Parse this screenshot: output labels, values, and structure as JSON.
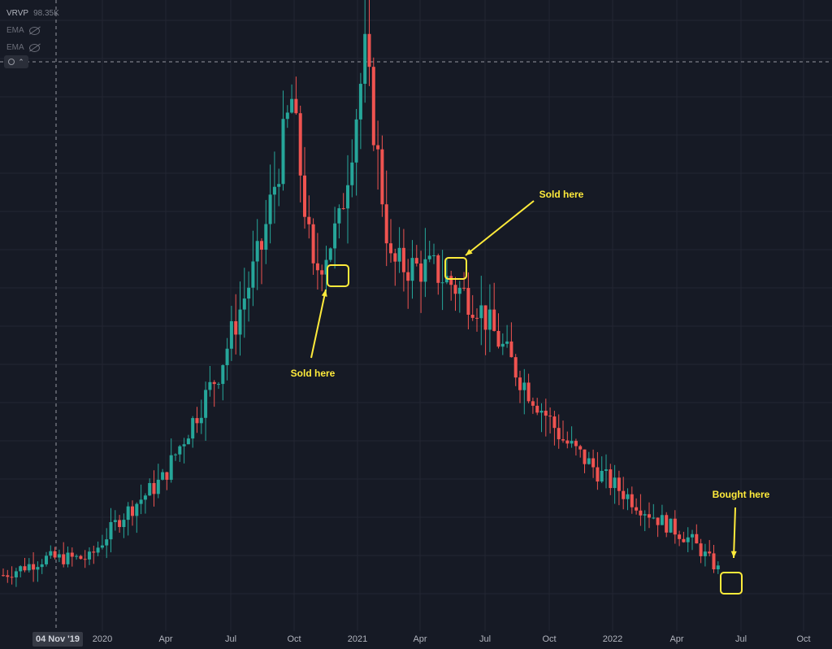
{
  "legend": {
    "vrvp_label": "VRVP",
    "vrvp_value": "98.35K",
    "ema1_label": "EMA",
    "ema2_label": "EMA"
  },
  "crosshair": {
    "date_label": "04 Nov '19"
  },
  "colors": {
    "background": "#161a25",
    "up": "#26a69a",
    "down": "#ef5350",
    "annotation": "#ffeb3b",
    "grid": "#232632",
    "axis_text": "#b2b5be"
  },
  "chart_data": {
    "type": "candlestick",
    "x_axis_ticks": [
      "2020",
      "Apr",
      "Jul",
      "Oct",
      "2021",
      "Apr",
      "Jul",
      "Oct",
      "2022",
      "Apr",
      "Jul",
      "Oct"
    ],
    "y_axis": "not shown",
    "series_trend_rel": [
      {
        "week": 0,
        "close": 0.04
      },
      {
        "week": 10,
        "close": 0.07
      },
      {
        "week": 20,
        "close": 0.07
      },
      {
        "week": 27,
        "close": 0.14
      },
      {
        "week": 37,
        "close": 0.21
      },
      {
        "week": 50,
        "close": 0.4
      },
      {
        "week": 60,
        "close": 0.62
      },
      {
        "week": 67,
        "close": 0.88
      },
      {
        "week": 72,
        "close": 0.57
      },
      {
        "week": 78,
        "close": 0.66
      },
      {
        "week": 84,
        "close": 0.96
      },
      {
        "week": 90,
        "close": 0.59
      },
      {
        "week": 100,
        "close": 0.58
      },
      {
        "week": 110,
        "close": 0.52
      },
      {
        "week": 120,
        "close": 0.39
      },
      {
        "week": 130,
        "close": 0.28
      },
      {
        "week": 140,
        "close": 0.21
      },
      {
        "week": 150,
        "close": 0.15
      },
      {
        "week": 160,
        "close": 0.1
      },
      {
        "week": 166,
        "close": 0.05
      }
    ],
    "annotations": [
      {
        "text": "Sold here"
      },
      {
        "text": "Sold here"
      },
      {
        "text": "Bought here"
      }
    ]
  }
}
